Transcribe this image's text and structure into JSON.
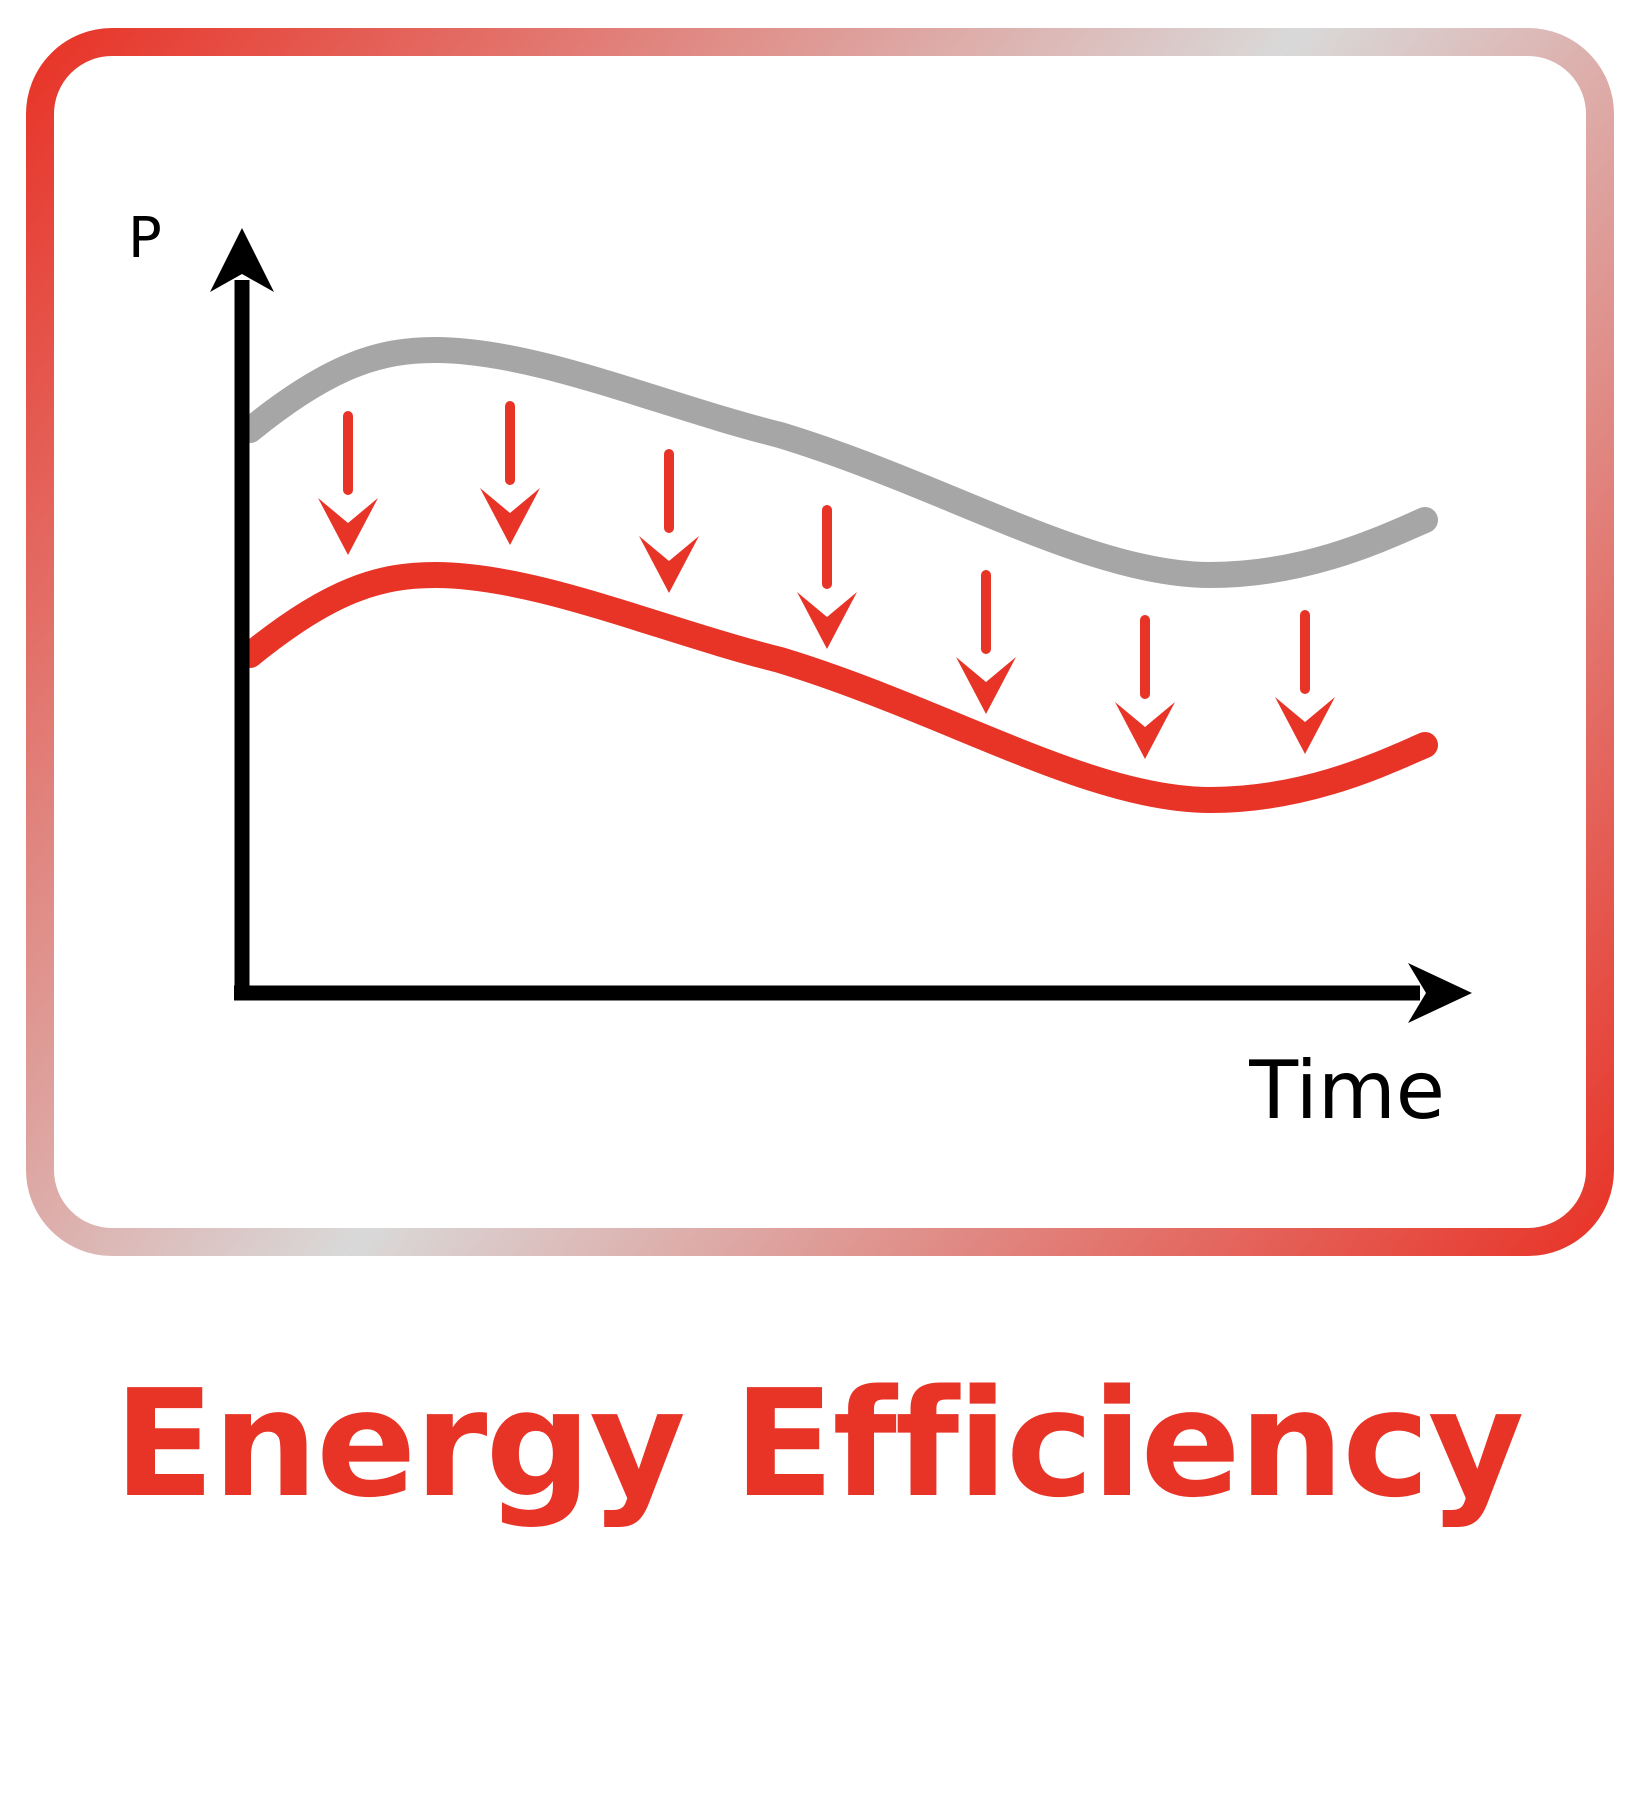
{
  "title": "Energy Efficiency",
  "axes": {
    "y_label": "P",
    "x_label": "Time"
  },
  "colors": {
    "accent_red": "#E83327",
    "baseline_gray": "#A6A6A6",
    "frame_gray": "#D9D9D9",
    "axis_black": "#000000"
  },
  "icons": {
    "reduction_arrows": "down-arrow-icon"
  }
}
